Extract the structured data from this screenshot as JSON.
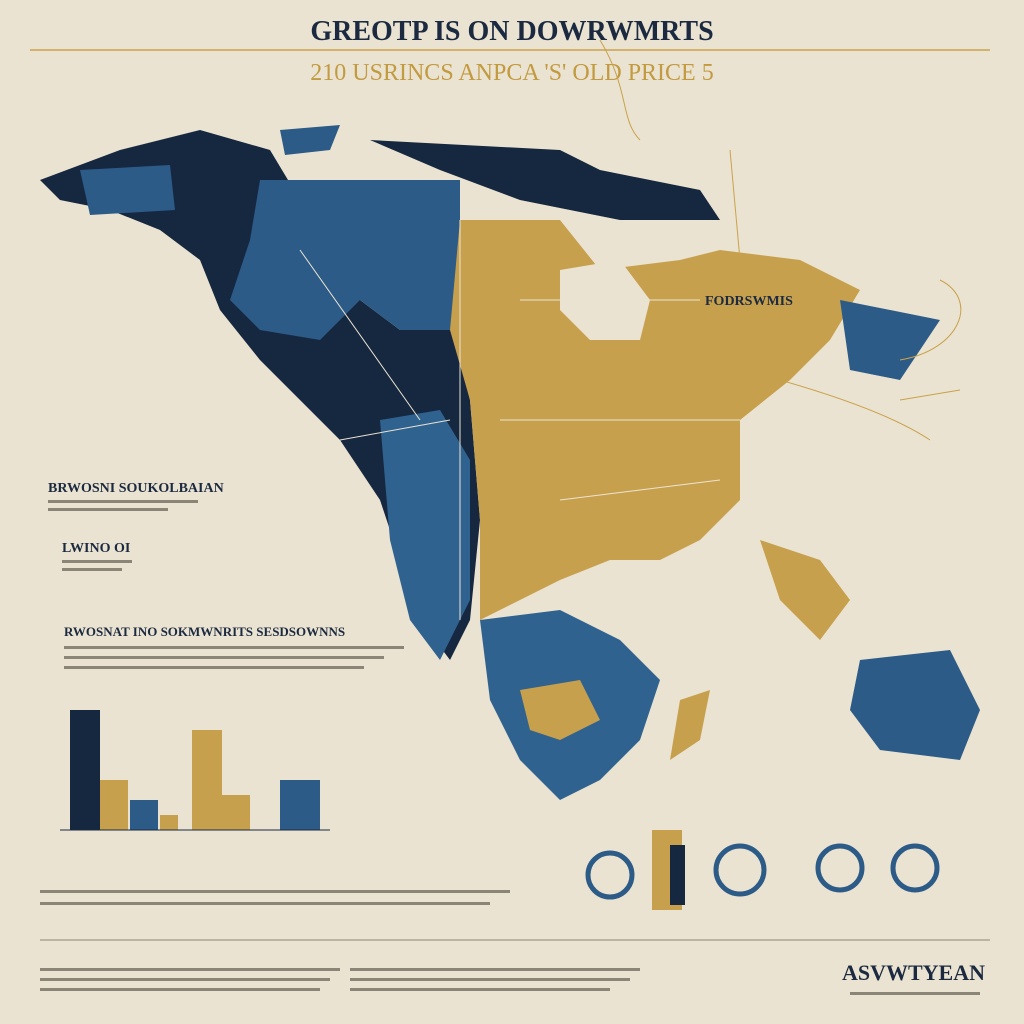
{
  "header": {
    "title": "GREOTP IS ON DOWRWMRTS",
    "subtitle": "210 USRINCS ANPCA 'S' OLD PRICE 5"
  },
  "labels": [
    {
      "text": "BRWOSNI SOUKOLBAIAN"
    },
    {
      "text": "RWOSNAT INO SOKMWNRITS SESDSOWNNS"
    },
    {
      "text": "FODRSWMIS"
    },
    {
      "text": "LWINO OI"
    }
  ],
  "footer": {
    "brand": "ASVWTYEAN"
  }
}
